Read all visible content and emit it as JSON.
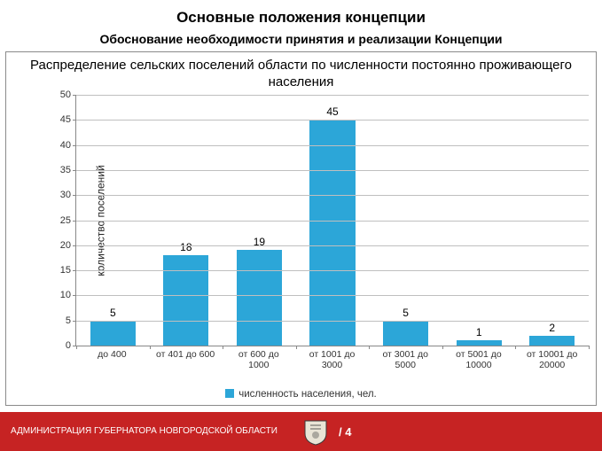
{
  "header": {
    "title": "Основные положения концепции",
    "subtitle": "Обоснование необходимости принятия и реализации Концепции"
  },
  "chart": {
    "type": "bar",
    "title": "Распределение сельских поселений области по численности постоянно проживающего населения",
    "y_axis_label": "количество поселений",
    "categories": [
      "до 400",
      "от 401 до 600",
      "от 600 до\n1000",
      "от 1001 до\n3000",
      "от 3001 до\n5000",
      "от 5001 до\n10000",
      "от 10001 до\n20000"
    ],
    "values": [
      5,
      18,
      19,
      45,
      5,
      1,
      2
    ],
    "value_labels": [
      "5",
      "18",
      "19",
      "45",
      "5",
      "1",
      "2"
    ],
    "bar_color": "#2ca6d8",
    "grid_color": "#bfbfbf",
    "axis_color": "#888888",
    "ylim": [
      0,
      50
    ],
    "ytick_step": 5,
    "legend_label": "численность населения, чел.",
    "title_fontsize": 15,
    "label_fontsize": 12,
    "tick_fontsize": 11
  },
  "footer": {
    "org": "АДМИНИСТРАЦИЯ ГУБЕРНАТОРА НОВГОРОДСКОЙ ОБЛАСТИ",
    "page_marker": "/ 4",
    "bg_color": "#c62323",
    "text_color": "#ffffff",
    "emblem_bg": "#e9e4d6",
    "emblem_stroke": "#3a3a3a"
  }
}
